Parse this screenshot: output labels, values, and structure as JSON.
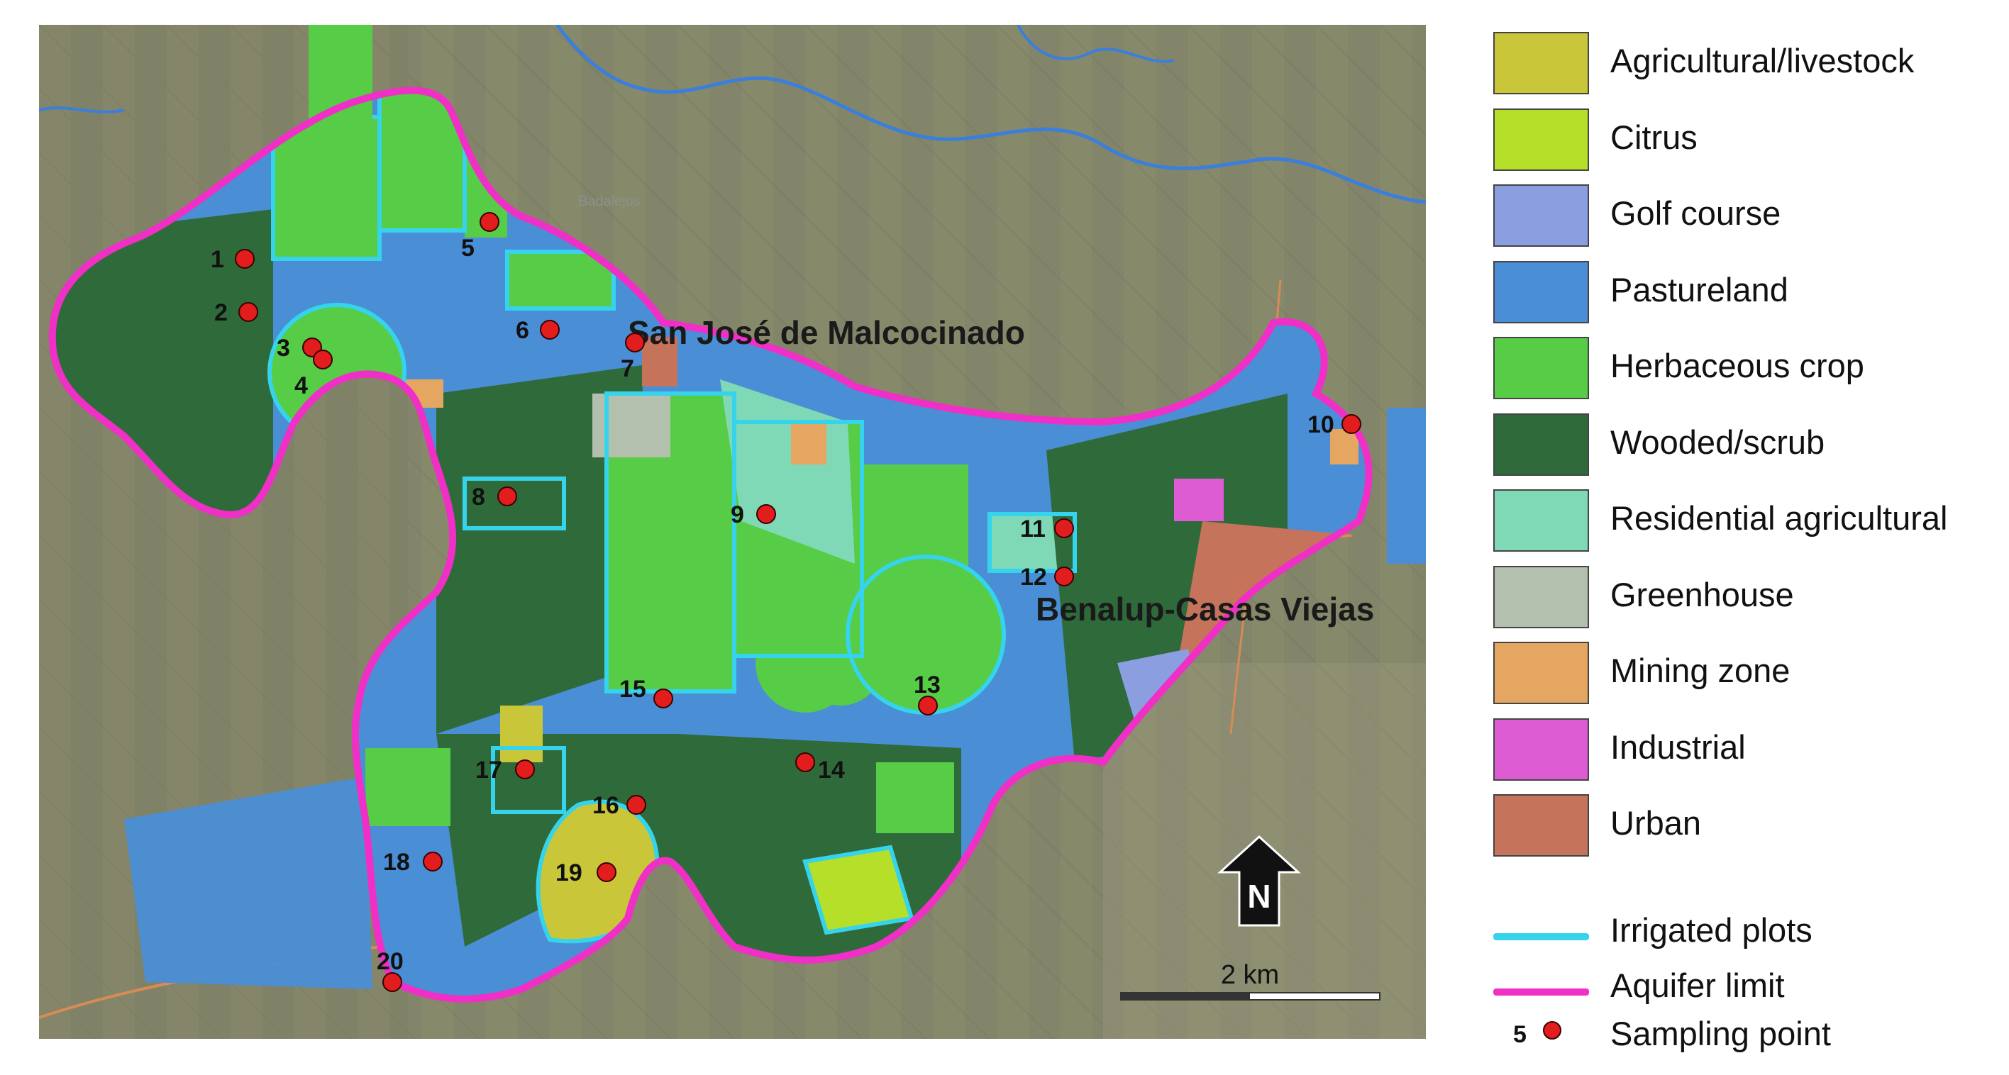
{
  "colors": {
    "agricultural_livestock": "#c9c63a",
    "citrus": "#b6df2a",
    "golf_course": "#8b9fe0",
    "pastureland": "#4a8ed6",
    "herbaceous_crop": "#57cc47",
    "wooded_scrub": "#2f6a3a",
    "residential_agricultural": "#7fd9b6",
    "greenhouse": "#b3c0ad",
    "mining_zone": "#e5a662",
    "industrial": "#dd5bd3",
    "urban": "#c6735c",
    "irrigated": "#36d3ec",
    "aquifer": "#f02fc6",
    "sampling": "#e21d1d"
  },
  "map": {
    "places": [
      "San José de Malcocinado",
      "Benalup-Casas Viejas"
    ],
    "minor_places": [
      "Badalejos"
    ],
    "north_label": "N",
    "scale_label": "2 km",
    "icons": [
      "north-arrow-icon",
      "scale-bar-icon"
    ],
    "sampling_points": [
      {
        "id": "1"
      },
      {
        "id": "2"
      },
      {
        "id": "3"
      },
      {
        "id": "4"
      },
      {
        "id": "5"
      },
      {
        "id": "6"
      },
      {
        "id": "7"
      },
      {
        "id": "8"
      },
      {
        "id": "9"
      },
      {
        "id": "10"
      },
      {
        "id": "11"
      },
      {
        "id": "12"
      },
      {
        "id": "13"
      },
      {
        "id": "14"
      },
      {
        "id": "15"
      },
      {
        "id": "16"
      },
      {
        "id": "17"
      },
      {
        "id": "18"
      },
      {
        "id": "19"
      },
      {
        "id": "20"
      }
    ]
  },
  "legend": {
    "items": [
      {
        "label": "Agricultural/livestock",
        "color": "#c9c63a"
      },
      {
        "label": "Citrus",
        "color": "#b6df2a"
      },
      {
        "label": "Golf course",
        "color": "#8b9fe0"
      },
      {
        "label": "Pastureland",
        "color": "#4a8ed6"
      },
      {
        "label": "Herbaceous crop",
        "color": "#57cc47"
      },
      {
        "label": "Wooded/scrub",
        "color": "#2f6a3a"
      },
      {
        "label": "Residential agricultural",
        "color": "#7fd9b6"
      },
      {
        "label": "Greenhouse",
        "color": "#b3c0ad"
      },
      {
        "label": "Mining zone",
        "color": "#e5a662"
      },
      {
        "label": "Industrial",
        "color": "#dd5bd3"
      },
      {
        "label": "Urban",
        "color": "#c6735c"
      }
    ],
    "lines": [
      {
        "label": "Irrigated plots",
        "color": "#36d3ec"
      },
      {
        "label": "Aquifer limit",
        "color": "#f02fc6"
      }
    ],
    "point": {
      "number": "5",
      "label": "Sampling point"
    }
  }
}
